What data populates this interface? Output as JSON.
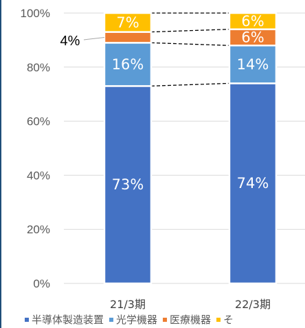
{
  "chart_data": {
    "type": "bar",
    "stacked": true,
    "categories": [
      "21/3期",
      "22/3期"
    ],
    "series": [
      {
        "name": "半導体製造装置",
        "color": "#4472c4",
        "values": [
          73,
          74
        ],
        "labels": [
          "73%",
          "74%"
        ]
      },
      {
        "name": "光学機器",
        "color": "#5b9bd5",
        "values": [
          16,
          14
        ],
        "labels": [
          "16%",
          "14%"
        ]
      },
      {
        "name": "医療機器",
        "color": "#ed7d31",
        "values": [
          4,
          6
        ],
        "labels": [
          "4%",
          "6%"
        ]
      },
      {
        "name": "そ",
        "color": "#ffc000",
        "values": [
          7,
          6
        ],
        "labels": [
          "7%",
          "6%"
        ]
      }
    ],
    "ylim": [
      0,
      100
    ],
    "yticks": [
      0,
      20,
      40,
      60,
      80,
      100
    ],
    "ytick_labels": [
      "0%",
      "20%",
      "40%",
      "60%",
      "80%",
      "100%"
    ],
    "grid": true,
    "legend_position": "bottom",
    "series_lines": true
  }
}
